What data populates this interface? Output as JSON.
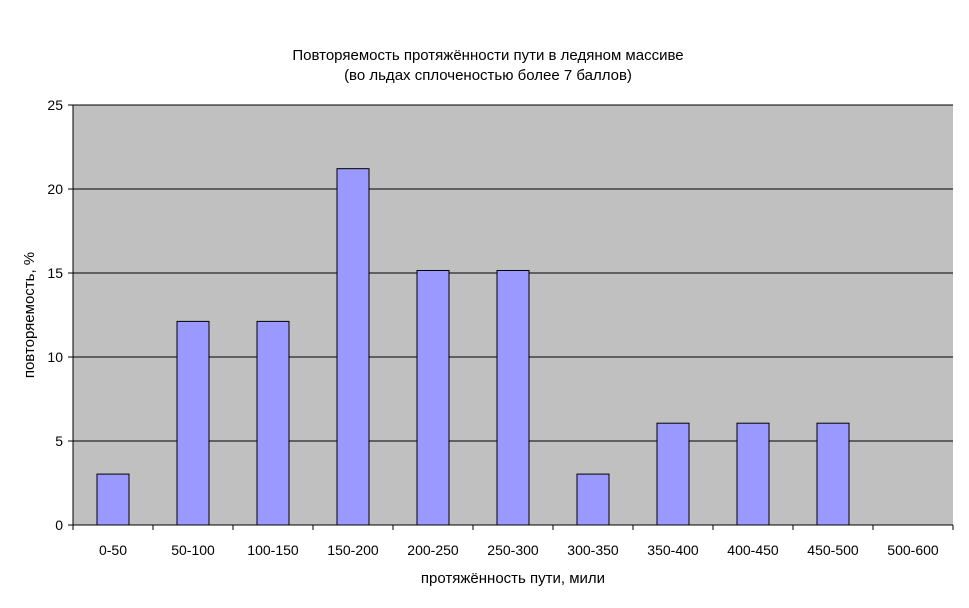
{
  "chart_data": {
    "type": "bar",
    "title": "Повторяемость протяжённости пути в ледяном массиве",
    "subtitle": "(во льдах сплоченостью более 7 баллов)",
    "xlabel": "протяжённость пути, мили",
    "ylabel": "повторяемость, %",
    "categories": [
      "0-50",
      "50-100",
      "100-150",
      "150-200",
      "200-250",
      "250-300",
      "300-350",
      "350-400",
      "400-450",
      "450-500",
      "500-600"
    ],
    "values": [
      3.03,
      12.12,
      12.12,
      21.21,
      15.15,
      15.15,
      3.03,
      6.06,
      6.06,
      6.06,
      0
    ],
    "ylim": [
      0,
      25
    ],
    "yticks": [
      0,
      5,
      10,
      15,
      20,
      25
    ],
    "ytick_labels": [
      "0",
      "5",
      "10",
      "15",
      "20",
      "25"
    ],
    "grid": "horizontal",
    "legend": "none",
    "colors": {
      "bar_fill": "#9999ff",
      "bar_stroke": "#000000",
      "plot_background": "#c0c0c0",
      "gridline": "#000000"
    }
  }
}
